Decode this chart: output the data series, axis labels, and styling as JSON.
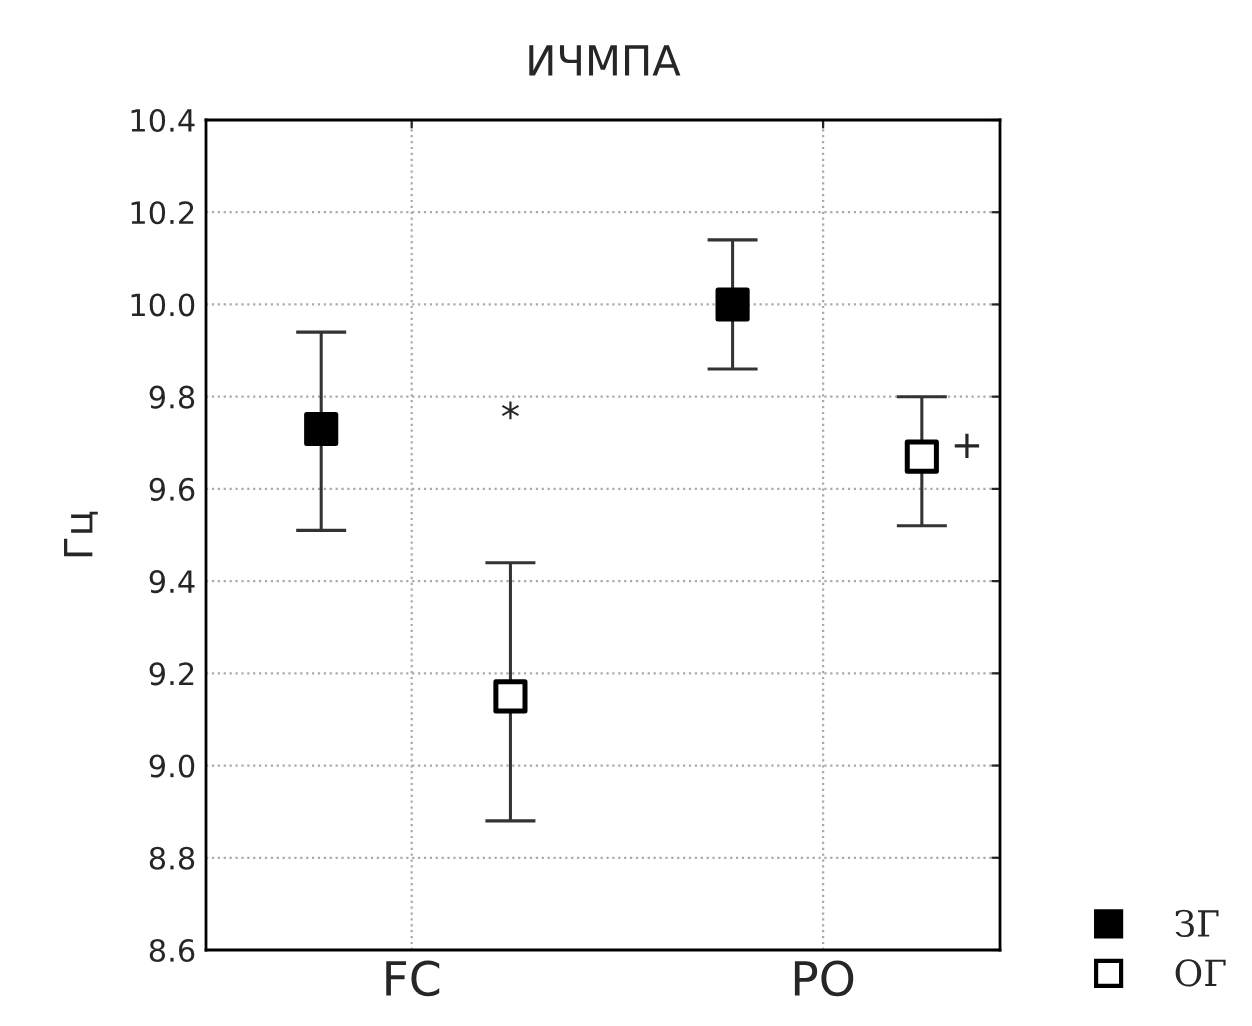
{
  "chart_data": {
    "type": "scatter",
    "title": "ИЧМПА",
    "ylabel": "Гц",
    "categories": [
      "FC",
      "PO"
    ],
    "series": [
      {
        "name": "ЗГ",
        "color": "#000000",
        "values": [
          9.73,
          10.0
        ],
        "errors": [
          [
            9.51,
            9.94
          ],
          [
            9.86,
            10.14
          ]
        ],
        "marker": "square"
      },
      {
        "name": "ОГ",
        "color": "#ffffff",
        "values": [
          9.15,
          9.67
        ],
        "errors": [
          [
            8.88,
            9.44
          ],
          [
            9.52,
            9.8
          ]
        ],
        "marker": "square"
      }
    ],
    "ylim": [
      8.6,
      10.4
    ],
    "yticks": [
      {
        "value": 8.6,
        "label": "8.6"
      },
      {
        "value": 8.8,
        "label": "8.8"
      },
      {
        "value": 9.0,
        "label": "9.0"
      },
      {
        "value": 9.2,
        "label": "9.2"
      },
      {
        "value": 9.4,
        "label": "9.4"
      },
      {
        "value": 9.6,
        "label": "9.6"
      },
      {
        "value": 9.8,
        "label": "9.8"
      },
      {
        "value": 10.0,
        "label": "10.0"
      },
      {
        "value": 10.2,
        "label": "10.2"
      },
      {
        "value": 10.4,
        "label": "10.4"
      }
    ],
    "annotations": [
      "*",
      "+"
    ],
    "grid": true,
    "legend": "bottom right"
  }
}
